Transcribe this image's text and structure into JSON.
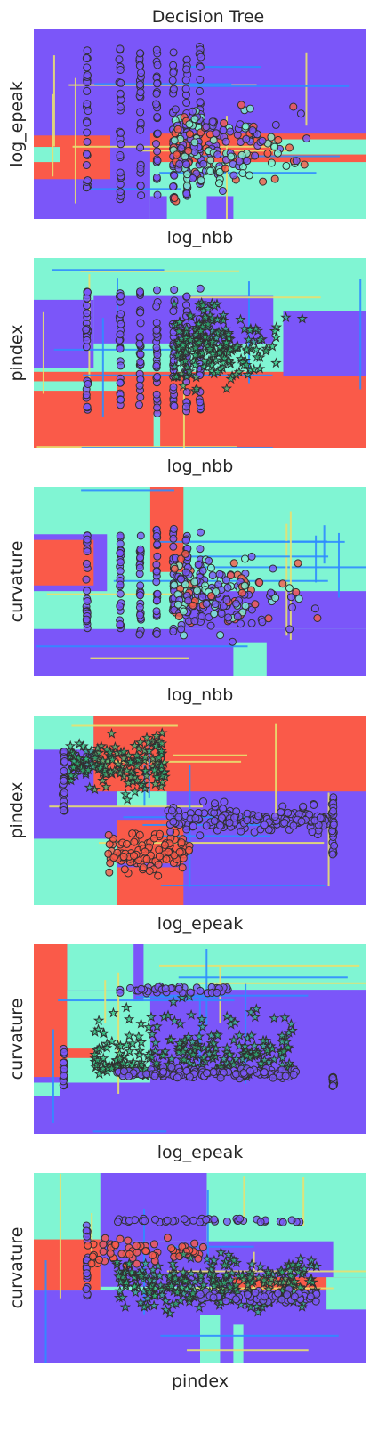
{
  "figure": {
    "title": "Decision Tree"
  },
  "colors": {
    "class_purple": "#7b56f9",
    "class_aqua": "#80f5d3",
    "class_red": "#fa5a49",
    "boundary_blue": "#2f8cff",
    "boundary_yellow": "#e8e070",
    "marker_edge": "#303030",
    "marker_star_fill": "#2ec27e"
  },
  "chart_data": [
    {
      "type": "scatter",
      "xlabel": "log_nbb",
      "ylabel": "log_epeak",
      "ticks": "hidden",
      "grid": false
    },
    {
      "type": "scatter",
      "xlabel": "log_nbb",
      "ylabel": "pindex",
      "ticks": "hidden",
      "grid": false
    },
    {
      "type": "scatter",
      "xlabel": "log_nbb",
      "ylabel": "curvature",
      "ticks": "hidden",
      "grid": false
    },
    {
      "type": "scatter",
      "xlabel": "log_epeak",
      "ylabel": "pindex",
      "ticks": "hidden",
      "grid": false
    },
    {
      "type": "scatter",
      "xlabel": "log_epeak",
      "ylabel": "curvature",
      "ticks": "hidden",
      "grid": false
    },
    {
      "type": "scatter",
      "xlabel": "pindex",
      "ylabel": "curvature",
      "ticks": "hidden",
      "grid": false
    }
  ]
}
